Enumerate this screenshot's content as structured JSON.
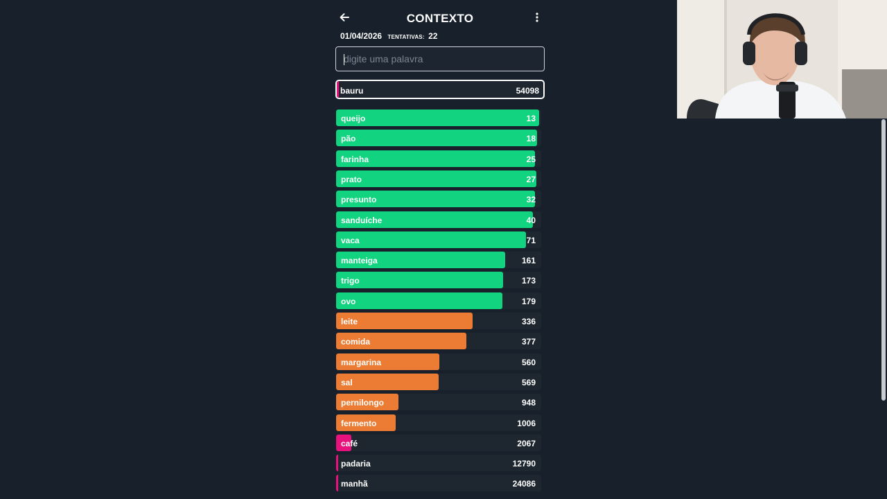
{
  "header": {
    "title": "CONTEXTO",
    "back_icon": "arrow-left-icon",
    "menu_icon": "more-vertical-icon"
  },
  "meta": {
    "date": "01/04/2026",
    "attempts_label": "TENTATIVAS:",
    "attempts": "22"
  },
  "search": {
    "placeholder": "digite uma palavra"
  },
  "latest_guess": {
    "word": "bauru",
    "rank": "54098"
  },
  "colors": {
    "green": "#12d37f",
    "orange": "#ec7c34",
    "pink": "#e8127c",
    "row_bg": "#1e2730",
    "page_bg": "#17202b"
  },
  "guesses": [
    {
      "word": "queijo",
      "rank": "13",
      "fill": 0.99,
      "color": "green"
    },
    {
      "word": "pão",
      "rank": "18",
      "fill": 0.98,
      "color": "green"
    },
    {
      "word": "farinha",
      "rank": "25",
      "fill": 0.97,
      "color": "green"
    },
    {
      "word": "prato",
      "rank": "27",
      "fill": 0.975,
      "color": "green"
    },
    {
      "word": "presunto",
      "rank": "32",
      "fill": 0.97,
      "color": "green"
    },
    {
      "word": "sanduíche",
      "rank": "40",
      "fill": 0.96,
      "color": "green"
    },
    {
      "word": "vaca",
      "rank": "71",
      "fill": 0.925,
      "color": "green"
    },
    {
      "word": "manteiga",
      "rank": "161",
      "fill": 0.825,
      "color": "green"
    },
    {
      "word": "trigo",
      "rank": "173",
      "fill": 0.815,
      "color": "green"
    },
    {
      "word": "ovo",
      "rank": "179",
      "fill": 0.81,
      "color": "green"
    },
    {
      "word": "leite",
      "rank": "336",
      "fill": 0.665,
      "color": "orange"
    },
    {
      "word": "comida",
      "rank": "377",
      "fill": 0.635,
      "color": "orange"
    },
    {
      "word": "margarina",
      "rank": "560",
      "fill": 0.505,
      "color": "orange"
    },
    {
      "word": "sal",
      "rank": "569",
      "fill": 0.5,
      "color": "orange"
    },
    {
      "word": "pernilongo",
      "rank": "948",
      "fill": 0.305,
      "color": "orange"
    },
    {
      "word": "fermento",
      "rank": "1006",
      "fill": 0.29,
      "color": "orange"
    },
    {
      "word": "café",
      "rank": "2067",
      "fill": 0.075,
      "color": "pink"
    },
    {
      "word": "padaria",
      "rank": "12790",
      "fill": 0.01,
      "color": "pink"
    },
    {
      "word": "manhã",
      "rank": "24086",
      "fill": 0.01,
      "color": "pink"
    }
  ]
}
